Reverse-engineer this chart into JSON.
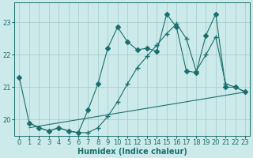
{
  "title": "",
  "xlabel": "Humidex (Indice chaleur)",
  "bg_color": "#cceaea",
  "grid_color": "#aacece",
  "line_color": "#1a6e6e",
  "xlim": [
    -0.5,
    23.5
  ],
  "ylim": [
    19.5,
    23.6
  ],
  "xticks": [
    0,
    1,
    2,
    3,
    4,
    5,
    6,
    7,
    8,
    9,
    10,
    11,
    12,
    13,
    14,
    15,
    16,
    17,
    18,
    19,
    20,
    21,
    22,
    23
  ],
  "yticks": [
    20,
    21,
    22,
    23
  ],
  "line1_x": [
    0,
    1,
    2,
    3,
    4,
    5,
    6,
    7,
    8,
    9,
    10,
    11,
    12,
    13,
    14,
    15,
    16,
    17,
    18,
    19,
    20,
    21,
    22,
    23
  ],
  "line1_y": [
    21.3,
    19.9,
    19.75,
    19.65,
    19.75,
    19.65,
    19.6,
    20.3,
    21.1,
    22.2,
    22.85,
    22.4,
    22.15,
    22.2,
    22.1,
    23.25,
    22.85,
    21.5,
    21.45,
    22.6,
    23.25,
    21.0,
    21.0,
    20.85
  ],
  "line2_x": [
    1,
    2,
    3,
    4,
    5,
    6,
    7,
    8,
    9,
    10,
    11,
    12,
    13,
    14,
    15,
    16,
    17,
    18,
    19,
    20,
    21,
    22,
    23
  ],
  "line2_y": [
    19.9,
    19.75,
    19.65,
    19.75,
    19.65,
    19.6,
    19.6,
    19.75,
    20.1,
    20.55,
    21.1,
    21.6,
    21.95,
    22.3,
    22.65,
    22.95,
    22.5,
    21.5,
    22.0,
    22.55,
    21.1,
    21.0,
    20.85
  ],
  "line3_x": [
    1,
    23
  ],
  "line3_y": [
    19.75,
    20.85
  ],
  "marker_size": 3,
  "linewidth": 0.8,
  "xlabel_fontsize": 7,
  "tick_fontsize": 6
}
